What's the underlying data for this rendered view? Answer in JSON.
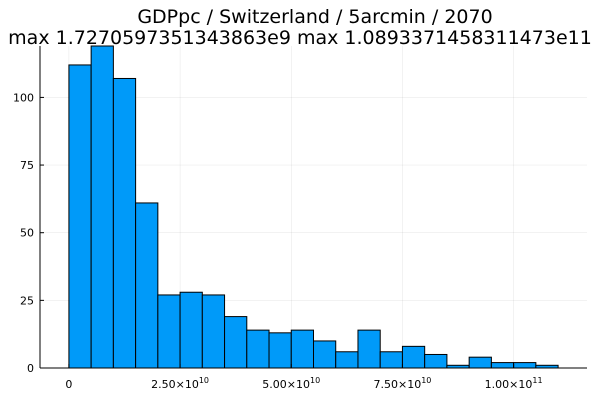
{
  "chart_data": {
    "type": "bar",
    "title": "GDPpc / Switzerland / 5arcmin / 2070",
    "subtitle": "max 1.7270597351343863e9  max 1.0893371458311473e11",
    "xlabel": "",
    "ylabel": "",
    "bin_width": 5000000000,
    "bin_edges": [
      0,
      5000000000,
      10000000000,
      15000000000,
      20000000000,
      25000000000,
      30000000000,
      35000000000,
      40000000000,
      45000000000,
      50000000000,
      55000000000,
      60000000000,
      65000000000,
      70000000000,
      75000000000,
      80000000000,
      85000000000,
      90000000000,
      95000000000,
      100000000000,
      105000000000,
      110000000000
    ],
    "values": [
      112,
      119,
      107,
      61,
      27,
      28,
      27,
      19,
      14,
      13,
      14,
      10,
      6,
      14,
      6,
      8,
      5,
      1,
      4,
      2,
      2,
      1
    ],
    "xlim": [
      -6500000000,
      116500000000
    ],
    "ylim": [
      0,
      119
    ],
    "x_ticks": [
      {
        "value": 0,
        "mantissa": "0",
        "exponent": ""
      },
      {
        "value": 25000000000,
        "mantissa": "2.50×10",
        "exponent": "10"
      },
      {
        "value": 50000000000,
        "mantissa": "5.00×10",
        "exponent": "10"
      },
      {
        "value": 75000000000,
        "mantissa": "7.50×10",
        "exponent": "10"
      },
      {
        "value": 100000000000,
        "mantissa": "1.00×10",
        "exponent": "11"
      }
    ],
    "y_ticks": [
      0,
      25,
      50,
      75,
      100
    ],
    "grid": true,
    "legend": "none",
    "bar_color": "#009af9",
    "edge_color": "#000000"
  }
}
